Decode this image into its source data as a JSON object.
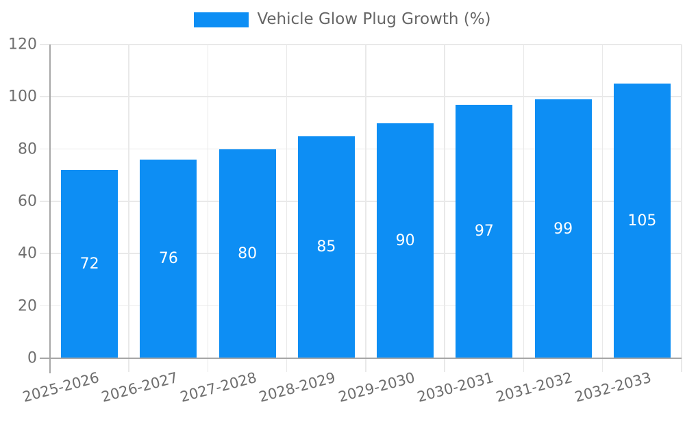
{
  "colors": {
    "bar": "#0d8ef4",
    "grid": "#e9e9e9",
    "axis": "#a6a6a6",
    "tick_label": "#6e6e6e",
    "legend_text": "#666666",
    "value_label": "#ffffff",
    "background": "#ffffff"
  },
  "chart_data": {
    "type": "bar",
    "title": "",
    "xlabel": "",
    "ylabel": "",
    "categories": [
      "2025-2026",
      "2026-2027",
      "2027-2028",
      "2028-2029",
      "2029-2030",
      "2030-2031",
      "2031-2032",
      "2032-2033"
    ],
    "series": [
      {
        "name": "Vehicle Glow Plug Growth (%)",
        "values": [
          72,
          76,
          80,
          85,
          90,
          97,
          99,
          105
        ]
      }
    ],
    "ylim": [
      0,
      120
    ],
    "yticks": [
      0,
      20,
      40,
      60,
      80,
      100,
      120
    ],
    "grid": true,
    "legend_position": "top-center",
    "value_labels_position": "inside-center",
    "x_tick_rotation_deg": -15
  }
}
